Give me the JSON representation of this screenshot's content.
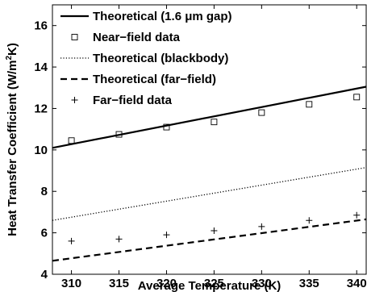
{
  "chart_data": {
    "type": "line",
    "xlabel": "Average Temperature (K)",
    "ylabel_prefix": "Heat Transfer Coefficient (W/m",
    "ylabel_sup": "2",
    "ylabel_suffix": "K)",
    "xlim": [
      308,
      341
    ],
    "ylim": [
      4,
      17
    ],
    "x_ticks": [
      310,
      315,
      320,
      325,
      330,
      335,
      340
    ],
    "y_ticks": [
      4,
      6,
      8,
      10,
      12,
      14,
      16
    ],
    "grid": false,
    "legend_position": "top-left",
    "series": [
      {
        "name": "Theoretical (1.6 μm gap)",
        "kind": "line",
        "style": "solid",
        "x": [
          308,
          341
        ],
        "y": [
          10.1,
          13.05
        ]
      },
      {
        "name": "Near−field data",
        "kind": "marker",
        "marker": "square",
        "x": [
          310,
          315,
          320,
          325,
          330,
          335,
          340
        ],
        "y": [
          10.45,
          10.75,
          11.1,
          11.35,
          11.8,
          12.2,
          12.55
        ]
      },
      {
        "name": "Theoretical (blackbody)",
        "kind": "line",
        "style": "dotted",
        "x": [
          308,
          341
        ],
        "y": [
          6.6,
          9.15
        ]
      },
      {
        "name": "Theoretical (far−field)",
        "kind": "line",
        "style": "dashed",
        "x": [
          308,
          341
        ],
        "y": [
          4.65,
          6.65
        ]
      },
      {
        "name": "Far−field data",
        "kind": "marker",
        "marker": "plus",
        "x": [
          310,
          315,
          320,
          325,
          330,
          335,
          340
        ],
        "y": [
          5.6,
          5.7,
          5.9,
          6.1,
          6.3,
          6.6,
          6.85
        ]
      }
    ]
  }
}
